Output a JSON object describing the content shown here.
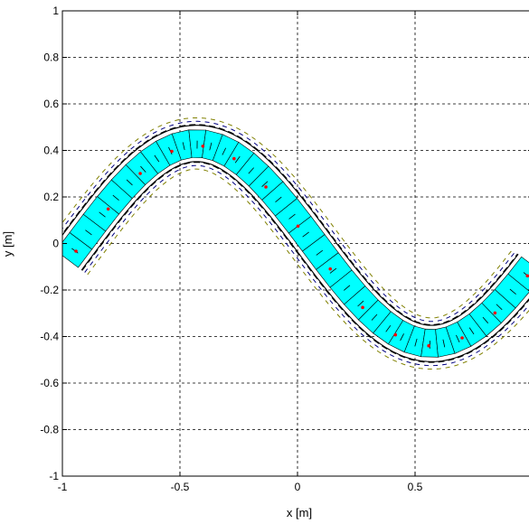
{
  "chart_data": {
    "type": "line",
    "title": "",
    "xlabel": "x [m]",
    "ylabel": "y [m]",
    "xlim": [
      -1,
      1
    ],
    "ylim": [
      -1,
      1
    ],
    "xticks": [
      -1,
      -0.5,
      0,
      0.5,
      1
    ],
    "xtick_labels": [
      "-1",
      "-0.5",
      "0",
      "0.5",
      "1"
    ],
    "yticks": [
      -1,
      -0.8,
      -0.6,
      -0.4,
      -0.2,
      0,
      0.2,
      0.4,
      0.6,
      0.8,
      1
    ],
    "ytick_labels": [
      "-1",
      "-0.8",
      "-0.6",
      "-0.4",
      "-0.2",
      "0",
      "0.2",
      "0.4",
      "0.6",
      "0.8",
      "1"
    ],
    "grid": true,
    "grid_style": "dashed",
    "series": [
      {
        "role": "centerline",
        "function": "y = 0.43 * sin(pi * (x + 0.93))",
        "x_range": [
          -0.98,
          1.0
        ]
      }
    ],
    "band": {
      "color": "#00ffff",
      "half_width": 0.06,
      "segments": 34,
      "inner_edge_color": "#000000",
      "outer_edge_colors": [
        "#000000",
        "#000080",
        "#808000"
      ],
      "outer_edge_offsets": [
        0.08,
        0.095,
        0.11
      ]
    },
    "markers": {
      "color": "#ff0000",
      "count": 15
    }
  }
}
